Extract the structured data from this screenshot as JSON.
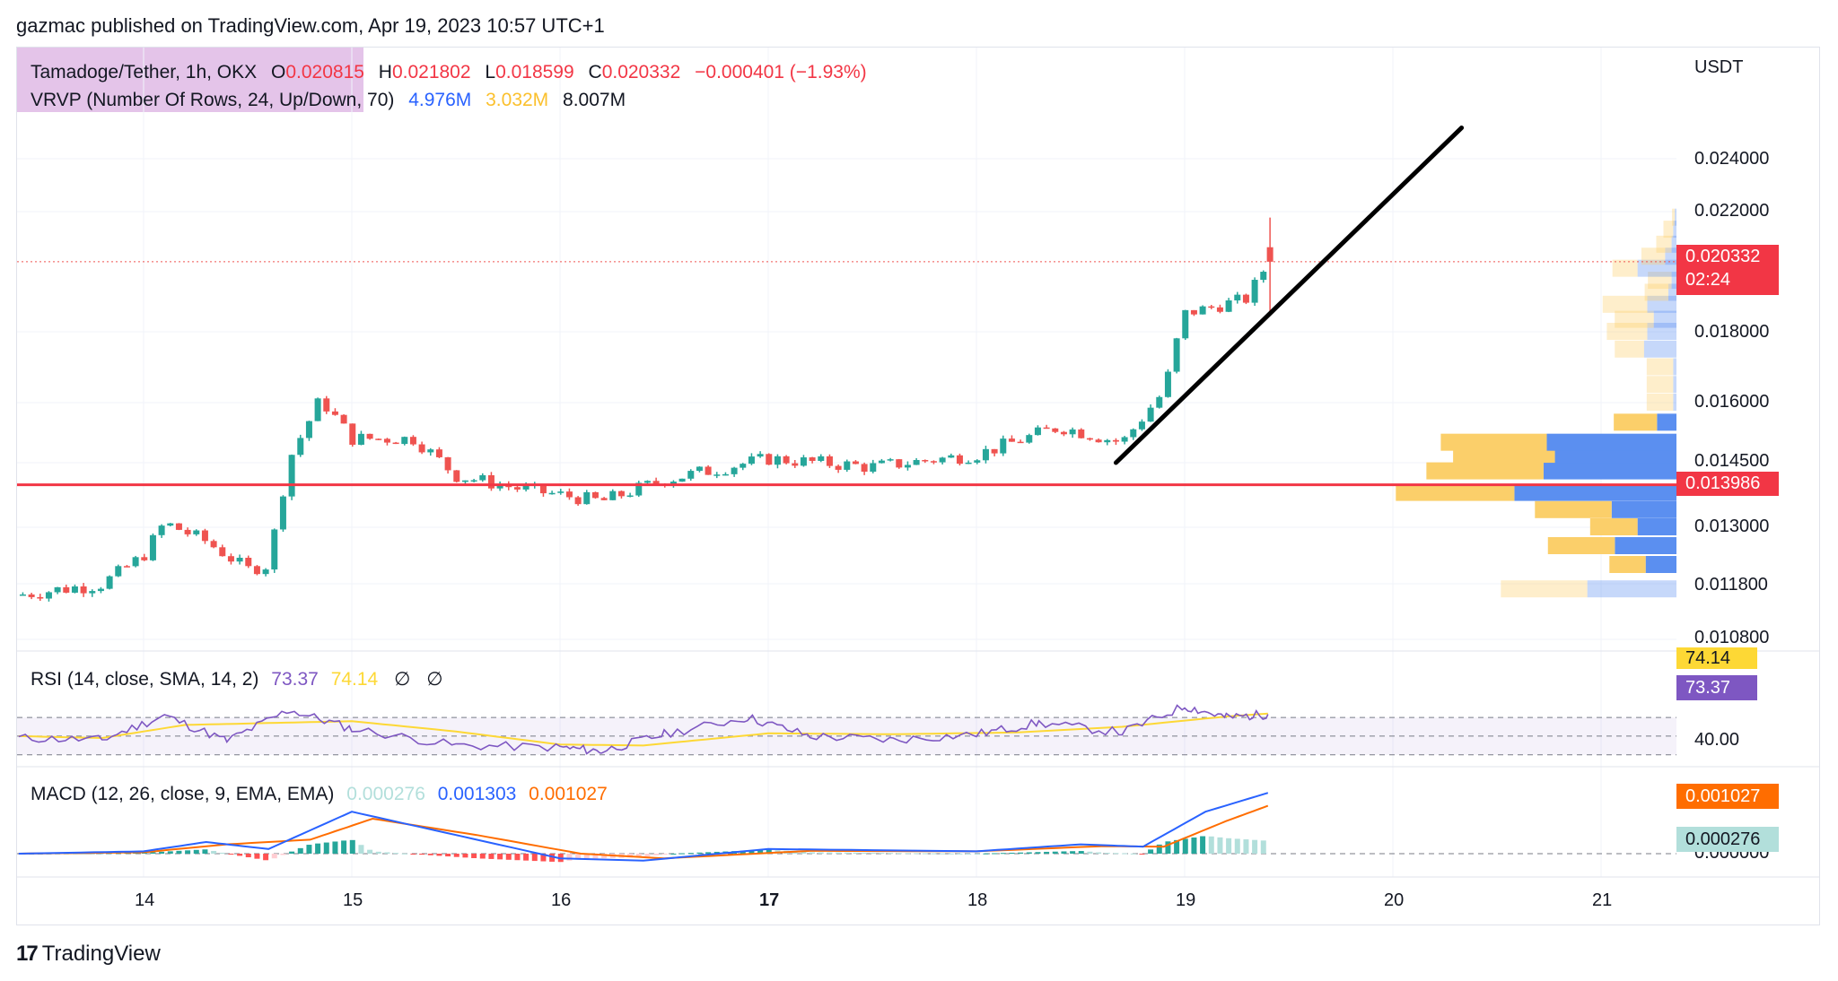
{
  "header": {
    "publisher_line": "gazmac published on TradingView.com, Apr 19, 2023 10:57 UTC+1"
  },
  "footer": {
    "brand": "TradingView",
    "brand_mark": "17"
  },
  "legend": {
    "symbol": "Tamadoge/Tether, 1h, OKX",
    "o_label": "O",
    "o_value": "0.020815",
    "h_label": "H",
    "h_value": "0.021802",
    "l_label": "L",
    "l_value": "0.018599",
    "c_label": "C",
    "c_value": "0.020332",
    "change": "−0.000401 (−1.93%)",
    "vrvp_label": "VRVP (Number Of Rows, 24, Up/Down, 70)",
    "vrvp_up": "4.976M",
    "vrvp_down": "3.032M",
    "vrvp_total": "8.007M",
    "rsi_label": "RSI (14, close, SMA, 14, 2)",
    "rsi_value": "73.37",
    "rsi_sma": "74.14",
    "rsi_extra1": "∅",
    "rsi_extra2": "∅",
    "macd_label": "MACD (12, 26, close, 9, EMA, EMA)",
    "macd_hist": "0.000276",
    "macd_line": "0.001303",
    "macd_signal": "0.001027"
  },
  "axis": {
    "currency": "USDT",
    "price_labels": [
      "0.024000",
      "0.022000",
      "0.018000",
      "0.016000",
      "0.014500",
      "0.013000",
      "0.011800",
      "0.010800"
    ],
    "rsi_labels": [
      "40.00"
    ],
    "macd_labels": [
      "0.000000"
    ],
    "x_labels": [
      "14",
      "15",
      "16",
      "17",
      "18",
      "19",
      "20",
      "21"
    ]
  },
  "tags": {
    "last_price": "0.020332",
    "countdown": "02:24",
    "hline_price": "0.013986",
    "rsi_sma_tag": "74.14",
    "rsi_tag": "73.37",
    "macd_signal_tag": "0.001027",
    "macd_hist_tag": "0.000276"
  },
  "colors": {
    "up": "#26a69a",
    "down": "#ef5350",
    "vp_up": "#5b8ff0",
    "vp_down": "#fbcf6a",
    "rsi": "#7e57c2",
    "rsi_sma": "#fdd835",
    "macd": "#2962ff",
    "signal": "#ff6d00",
    "hline": "#f23645",
    "trend": "#000000"
  },
  "chart_data": [
    {
      "type": "candlestick",
      "title": "Tamadoge/Tether, 1h, OKX",
      "ylabel": "USDT",
      "ylim": [
        0.0105,
        0.0255
      ],
      "x_ticks": [
        "14",
        "15",
        "16",
        "17",
        "18",
        "19",
        "20",
        "21"
      ],
      "anchors": [
        {
          "day": 13.4,
          "price": 0.0116
        },
        {
          "day": 13.8,
          "price": 0.0118
        },
        {
          "day": 14.0,
          "price": 0.0124
        },
        {
          "day": 14.1,
          "price": 0.0131
        },
        {
          "day": 14.3,
          "price": 0.0127
        },
        {
          "day": 14.5,
          "price": 0.0121
        },
        {
          "day": 14.6,
          "price": 0.0122
        },
        {
          "day": 14.7,
          "price": 0.0146
        },
        {
          "day": 14.85,
          "price": 0.0161
        },
        {
          "day": 15.0,
          "price": 0.0151
        },
        {
          "day": 15.3,
          "price": 0.0151
        },
        {
          "day": 15.5,
          "price": 0.0142
        },
        {
          "day": 15.8,
          "price": 0.0139
        },
        {
          "day": 16.2,
          "price": 0.0136
        },
        {
          "day": 16.5,
          "price": 0.0141
        },
        {
          "day": 17.0,
          "price": 0.0146
        },
        {
          "day": 17.5,
          "price": 0.0144
        },
        {
          "day": 18.0,
          "price": 0.0147
        },
        {
          "day": 18.4,
          "price": 0.0154
        },
        {
          "day": 18.7,
          "price": 0.015
        },
        {
          "day": 18.9,
          "price": 0.0163
        },
        {
          "day": 19.0,
          "price": 0.0186
        },
        {
          "day": 19.3,
          "price": 0.0191
        },
        {
          "day": 19.4,
          "price": 0.0203
        }
      ],
      "last_candle": {
        "open": 0.020815,
        "high": 0.021802,
        "low": 0.018599,
        "close": 0.020332
      },
      "horizontal_line": 0.013986,
      "trend_line": [
        {
          "day": 18.67,
          "price": 0.0145
        },
        {
          "day": 20.33,
          "price": 0.0251
        }
      ],
      "volume_profile": [
        {
          "price": 0.0117,
          "up": 0.62,
          "down": 0.55
        },
        {
          "price": 0.0122,
          "up": 0.26,
          "down": 0.19
        },
        {
          "price": 0.0126,
          "up": 0.48,
          "down": 0.38
        },
        {
          "price": 0.013,
          "up": 0.34,
          "down": 0.24
        },
        {
          "price": 0.0134,
          "up": 0.55,
          "down": 0.4
        },
        {
          "price": 0.0138,
          "up": 0.85,
          "down": 1.0
        },
        {
          "price": 0.0143,
          "up": 0.84,
          "down": 0.82
        },
        {
          "price": 0.0147,
          "up": 0.73,
          "down": 0.75
        },
        {
          "price": 0.015,
          "up": 0.76,
          "down": 0.8
        },
        {
          "price": 0.0155,
          "up": 0.31,
          "down": 0.12
        },
        {
          "price": 0.016,
          "up": 0.19,
          "down": 0.02
        },
        {
          "price": 0.0165,
          "up": 0.19,
          "down": 0.02
        },
        {
          "price": 0.017,
          "up": 0.19,
          "down": 0.02
        },
        {
          "price": 0.0175,
          "up": 0.21,
          "down": 0.2
        },
        {
          "price": 0.018,
          "up": 0.29,
          "down": 0.18
        },
        {
          "price": 0.0184,
          "up": 0.28,
          "down": 0.14
        },
        {
          "price": 0.0189,
          "up": 0.32,
          "down": 0.18
        },
        {
          "price": 0.0193,
          "up": 0.17,
          "down": 0.05
        },
        {
          "price": 0.0197,
          "up": 0.17,
          "down": 0.03
        },
        {
          "price": 0.0201,
          "up": 0.18,
          "down": 0.24
        },
        {
          "price": 0.0205,
          "up": 0.17,
          "down": 0.07
        },
        {
          "price": 0.0209,
          "up": 0.11,
          "down": 0.03
        },
        {
          "price": 0.0214,
          "up": 0.07,
          "down": 0.02
        },
        {
          "price": 0.0218,
          "up": 0.02,
          "down": 0.01
        }
      ]
    },
    {
      "type": "line",
      "title": "RSI (14, close, SMA, 14, 2)",
      "ylim": [
        25,
        95
      ],
      "bands": [
        30,
        50,
        70
      ],
      "series": [
        {
          "name": "RSI",
          "points": [
            {
              "day": 13.4,
              "value": 48
            },
            {
              "day": 13.8,
              "value": 46
            },
            {
              "day": 14.1,
              "value": 72
            },
            {
              "day": 14.4,
              "value": 45
            },
            {
              "day": 14.7,
              "value": 78
            },
            {
              "day": 15.0,
              "value": 58
            },
            {
              "day": 15.5,
              "value": 40
            },
            {
              "day": 16.0,
              "value": 38
            },
            {
              "day": 16.2,
              "value": 34
            },
            {
              "day": 16.5,
              "value": 52
            },
            {
              "day": 16.9,
              "value": 70
            },
            {
              "day": 17.2,
              "value": 50
            },
            {
              "day": 17.6,
              "value": 46
            },
            {
              "day": 18.0,
              "value": 52
            },
            {
              "day": 18.3,
              "value": 64
            },
            {
              "day": 18.7,
              "value": 54
            },
            {
              "day": 19.0,
              "value": 82
            },
            {
              "day": 19.2,
              "value": 70
            },
            {
              "day": 19.4,
              "value": 73.37
            }
          ]
        },
        {
          "name": "SMA",
          "points": [
            {
              "day": 13.4,
              "value": 50
            },
            {
              "day": 13.8,
              "value": 48
            },
            {
              "day": 14.2,
              "value": 62
            },
            {
              "day": 14.6,
              "value": 64
            },
            {
              "day": 15.0,
              "value": 66
            },
            {
              "day": 15.5,
              "value": 55
            },
            {
              "day": 16.0,
              "value": 41
            },
            {
              "day": 16.4,
              "value": 40
            },
            {
              "day": 17.0,
              "value": 53
            },
            {
              "day": 17.6,
              "value": 52
            },
            {
              "day": 18.2,
              "value": 54
            },
            {
              "day": 18.7,
              "value": 60
            },
            {
              "day": 19.2,
              "value": 71
            },
            {
              "day": 19.4,
              "value": 74.14
            }
          ]
        }
      ]
    },
    {
      "type": "line",
      "title": "MACD (12, 26, close, 9, EMA, EMA)",
      "ylim": [
        -0.0004,
        0.0017
      ],
      "series": [
        {
          "name": "MACD",
          "points": [
            {
              "day": 13.4,
              "value": 0.0
            },
            {
              "day": 14.0,
              "value": 5e-05
            },
            {
              "day": 14.3,
              "value": 0.00025
            },
            {
              "day": 14.6,
              "value": 0.0001
            },
            {
              "day": 15.0,
              "value": 0.0009
            },
            {
              "day": 15.4,
              "value": 0.0005
            },
            {
              "day": 16.0,
              "value": -0.0001
            },
            {
              "day": 16.4,
              "value": -0.00015
            },
            {
              "day": 17.0,
              "value": 0.0001
            },
            {
              "day": 18.0,
              "value": 5e-05
            },
            {
              "day": 18.5,
              "value": 0.0002
            },
            {
              "day": 18.8,
              "value": 0.00015
            },
            {
              "day": 19.1,
              "value": 0.0009
            },
            {
              "day": 19.4,
              "value": 0.001303
            }
          ]
        },
        {
          "name": "Signal",
          "points": [
            {
              "day": 13.4,
              "value": 0.0
            },
            {
              "day": 14.0,
              "value": 3e-05
            },
            {
              "day": 14.4,
              "value": 0.0002
            },
            {
              "day": 14.8,
              "value": 0.0003
            },
            {
              "day": 15.1,
              "value": 0.00075
            },
            {
              "day": 15.6,
              "value": 0.0004
            },
            {
              "day": 16.1,
              "value": 0.0
            },
            {
              "day": 16.5,
              "value": -0.0001
            },
            {
              "day": 17.2,
              "value": 6e-05
            },
            {
              "day": 18.0,
              "value": 5e-05
            },
            {
              "day": 18.6,
              "value": 0.00016
            },
            {
              "day": 18.9,
              "value": 0.00015
            },
            {
              "day": 19.2,
              "value": 0.0007
            },
            {
              "day": 19.4,
              "value": 0.001027
            }
          ]
        }
      ]
    }
  ]
}
